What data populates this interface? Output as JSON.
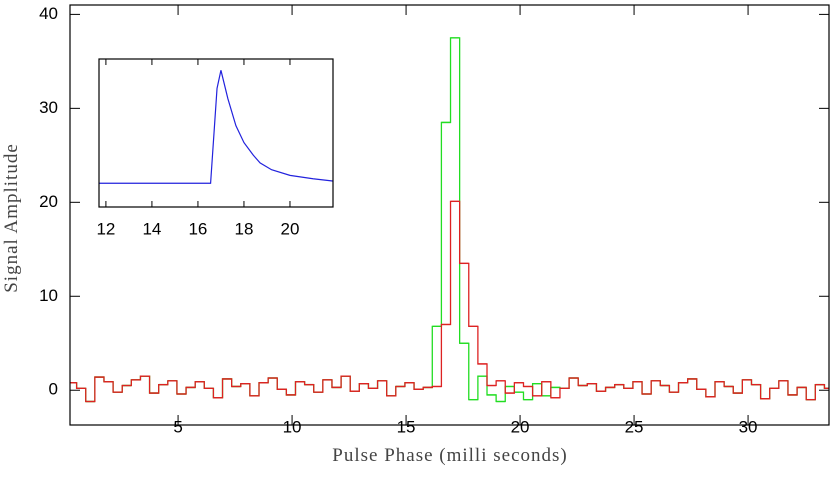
{
  "chart_data": [
    {
      "type": "step",
      "xlabel": "Pulse Phase (milli seconds)",
      "ylabel": "Signal Amplitude",
      "xlim": [
        0.26,
        33.55
      ],
      "ylim": [
        -3.7,
        41
      ],
      "xticks": [
        5,
        10,
        15,
        20,
        25,
        30
      ],
      "yticks": [
        0,
        10,
        20,
        30,
        40
      ],
      "x": [
        0.35,
        0.75,
        1.15,
        1.55,
        1.95,
        2.35,
        2.75,
        3.15,
        3.55,
        3.95,
        4.35,
        4.75,
        5.15,
        5.55,
        5.95,
        6.35,
        6.75,
        7.15,
        7.55,
        7.95,
        8.35,
        8.75,
        9.15,
        9.55,
        9.95,
        10.35,
        10.75,
        11.15,
        11.55,
        11.95,
        12.35,
        12.75,
        13.15,
        13.55,
        13.95,
        14.35,
        14.75,
        15.15,
        15.55,
        15.95,
        16.35,
        16.75,
        17.15,
        17.55,
        17.95,
        18.35,
        18.75,
        19.15,
        19.55,
        19.95,
        20.35,
        20.75,
        21.15,
        21.55,
        21.95,
        22.35,
        22.75,
        23.15,
        23.55,
        23.95,
        24.35,
        24.75,
        25.15,
        25.55,
        25.95,
        26.35,
        26.75,
        27.15,
        27.55,
        27.95,
        28.35,
        28.75,
        29.15,
        29.55,
        29.95,
        30.35,
        30.75,
        31.15,
        31.55,
        31.95,
        32.35,
        32.75,
        33.15,
        33.55
      ],
      "series": [
        {
          "color": "#22dd22",
          "values": [
            0.8,
            0.2,
            -1.2,
            1.4,
            0.9,
            -0.2,
            0.5,
            1.1,
            1.5,
            -0.3,
            0.6,
            1.0,
            -0.4,
            0.3,
            0.9,
            0.2,
            -0.8,
            1.2,
            0.4,
            0.7,
            -0.6,
            0.8,
            1.3,
            0.1,
            -0.5,
            0.9,
            0.6,
            -0.2,
            1.1,
            0.3,
            1.5,
            -0.1,
            0.7,
            0.2,
            1.0,
            -0.6,
            0.4,
            0.8,
            0.1,
            0.3,
            6.8,
            28.5,
            37.5,
            5.0,
            -1.0,
            1.5,
            -0.5,
            -1.2,
            0.4,
            -0.2,
            -1.0,
            0.7,
            -0.6,
            0.3,
            0.2,
            1.3,
            0.5,
            0.7,
            -0.1,
            0.3,
            0.6,
            0.2,
            0.9,
            -0.4,
            1.0,
            0.5,
            -0.2,
            0.8,
            1.2,
            0.1,
            -0.7,
            0.9,
            0.4,
            -0.3,
            1.1,
            0.6,
            -0.9,
            0.2,
            1.0,
            -0.5,
            0.3,
            -1.0,
            0.6,
            0.2
          ]
        },
        {
          "color": "#dd2222",
          "values": [
            0.8,
            0.2,
            -1.2,
            1.4,
            0.9,
            -0.2,
            0.5,
            1.1,
            1.5,
            -0.3,
            0.6,
            1.0,
            -0.4,
            0.3,
            0.9,
            0.2,
            -0.8,
            1.2,
            0.4,
            0.7,
            -0.6,
            0.8,
            1.3,
            0.1,
            -0.5,
            0.9,
            0.6,
            -0.2,
            1.1,
            0.3,
            1.5,
            -0.1,
            0.7,
            0.2,
            1.0,
            -0.6,
            0.4,
            0.8,
            0.1,
            0.3,
            0.4,
            7.0,
            20.1,
            13.5,
            6.8,
            2.8,
            0.5,
            1.0,
            -0.3,
            0.8,
            0.4,
            -0.6,
            0.9,
            -0.8,
            0.2,
            1.3,
            0.5,
            0.7,
            -0.1,
            0.3,
            0.6,
            0.2,
            0.9,
            -0.4,
            1.0,
            0.5,
            -0.2,
            0.8,
            1.2,
            0.1,
            -0.7,
            0.9,
            0.4,
            -0.3,
            1.1,
            0.6,
            -0.9,
            0.2,
            1.0,
            -0.5,
            0.3,
            -1.0,
            0.6,
            0.2
          ]
        }
      ]
    },
    {
      "type": "line",
      "xlim": [
        11.7,
        21.87
      ],
      "ylim": [
        -0.21,
        1.1
      ],
      "xticks": [
        12,
        14,
        16,
        18,
        20
      ],
      "x": [
        11.7,
        16.55,
        16.83,
        17.0,
        17.3,
        17.65,
        18.0,
        18.4,
        18.7,
        19.2,
        20,
        21,
        21.85
      ],
      "series": [
        {
          "color": "#2222dd",
          "values": [
            0,
            0,
            0.84,
            1.0,
            0.75,
            0.51,
            0.36,
            0.25,
            0.18,
            0.12,
            0.07,
            0.04,
            0.02
          ]
        }
      ]
    }
  ]
}
